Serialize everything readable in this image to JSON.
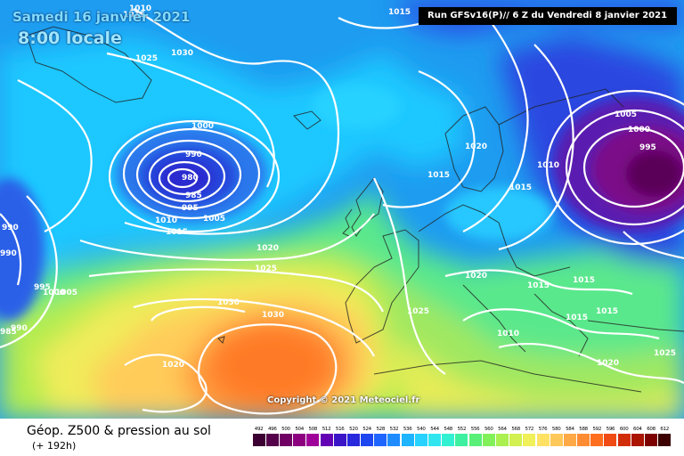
{
  "header": {
    "date": "Samedi 16 janvier 2021",
    "time": "8:00 locale",
    "run": "Run GFSv16(P)// 6 Z du Vendredi 8 janvier 2021"
  },
  "copyright": "Copyright © 2021 Meteociel.fr",
  "footer": {
    "title": "Géop. Z500 & pression au sol",
    "subtitle": "(+ 192h)"
  },
  "scale": {
    "labels": [
      "492",
      "496",
      "500",
      "504",
      "508",
      "512",
      "516",
      "520",
      "524",
      "528",
      "532",
      "536",
      "540",
      "544",
      "548",
      "552",
      "556",
      "560",
      "564",
      "568",
      "572",
      "576",
      "580",
      "584",
      "588",
      "592",
      "596",
      "600",
      "604",
      "608",
      "612"
    ],
    "colors": [
      "#3c0032",
      "#54004a",
      "#700064",
      "#8c0080",
      "#a0009a",
      "#6400b4",
      "#3c14c8",
      "#2828dc",
      "#1e46f0",
      "#1e64ff",
      "#1e8cff",
      "#1eb4ff",
      "#28d2ff",
      "#32e6f0",
      "#32f0d2",
      "#3cf0a0",
      "#5af078",
      "#82f05a",
      "#aaf050",
      "#d2f050",
      "#f0f05a",
      "#ffe164",
      "#ffc85a",
      "#ffaa46",
      "#ff8c32",
      "#ff6e1e",
      "#f04b14",
      "#d22d0a",
      "#aa1400",
      "#7d0000",
      "#3c0000"
    ]
  },
  "isobar_labels": [
    {
      "text": "1010",
      "id": "iso-1010-topleft"
    },
    {
      "text": "1015",
      "id": "iso-1015-topleft"
    },
    {
      "text": "1015",
      "id": "iso-1015-top"
    },
    {
      "text": "1025",
      "id": "iso-1025-atl"
    },
    {
      "text": "1030",
      "id": "iso-1030-atl"
    },
    {
      "text": "1000",
      "id": "iso-1000-low"
    },
    {
      "text": "990",
      "id": "iso-990-low"
    },
    {
      "text": "980",
      "id": "iso-980-low"
    },
    {
      "text": "985",
      "id": "iso-985-low"
    },
    {
      "text": "995",
      "id": "iso-995-low"
    },
    {
      "text": "1005",
      "id": "iso-1005-low"
    },
    {
      "text": "1010",
      "id": "iso-1010-low"
    },
    {
      "text": "1015",
      "id": "iso-1015-low"
    },
    {
      "text": "990",
      "id": "iso-990-w1"
    },
    {
      "text": "990",
      "id": "iso-990-w2"
    },
    {
      "text": "995",
      "id": "iso-995-w"
    },
    {
      "text": "1005",
      "id": "iso-1005-w"
    },
    {
      "text": "1000",
      "id": "iso-1000-w"
    },
    {
      "text": "985",
      "id": "iso-985-w"
    },
    {
      "text": "990",
      "id": "iso-990-w3"
    },
    {
      "text": "1020",
      "id": "iso-1020-mid"
    },
    {
      "text": "1025",
      "id": "iso-1025-mid"
    },
    {
      "text": "1030",
      "id": "iso-1030-az1"
    },
    {
      "text": "1030",
      "id": "iso-1030-az2"
    },
    {
      "text": "1020",
      "id": "iso-1020-sw"
    },
    {
      "text": "1025",
      "id": "iso-1025-iberia"
    },
    {
      "text": "1020",
      "id": "iso-1020-scand"
    },
    {
      "text": "1015",
      "id": "iso-1015-north"
    },
    {
      "text": "1015",
      "id": "iso-1015-baltic"
    },
    {
      "text": "1010",
      "id": "iso-1010-russia"
    },
    {
      "text": "1005",
      "id": "iso-1005-e"
    },
    {
      "text": "1000",
      "id": "iso-1000-e"
    },
    {
      "text": "995",
      "id": "iso-995-e"
    },
    {
      "text": "1020",
      "id": "iso-1020-alps"
    },
    {
      "text": "1015",
      "id": "iso-1015-balk1"
    },
    {
      "text": "1015",
      "id": "iso-1015-balk2"
    },
    {
      "text": "1015",
      "id": "iso-1015-greece"
    },
    {
      "text": "1015",
      "id": "iso-1015-turkey"
    },
    {
      "text": "1010",
      "id": "iso-1010-med"
    },
    {
      "text": "1020",
      "id": "iso-1020-se"
    },
    {
      "text": "1025",
      "id": "iso-1025-se"
    }
  ]
}
